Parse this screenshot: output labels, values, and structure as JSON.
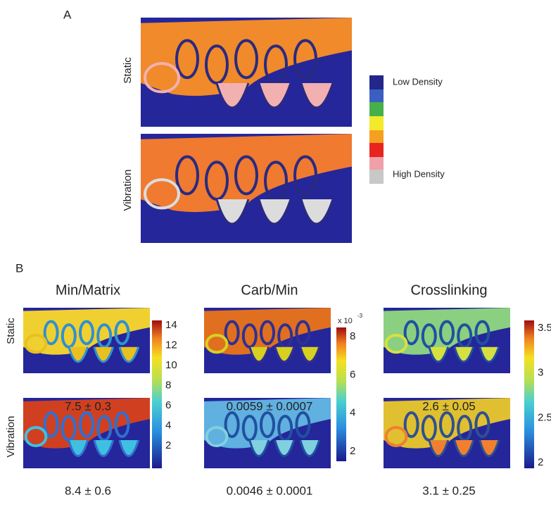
{
  "panel_a": {
    "label": "A",
    "rows": [
      "Static",
      "Vibration"
    ],
    "legend": [
      "Low Density",
      "High Density"
    ]
  },
  "panel_b": {
    "label": "B",
    "rows": [
      "Static",
      "Vibration"
    ],
    "columns": [
      {
        "title": "Min/Matrix",
        "values": [
          "7.5 ± 0.3",
          "8.4 ± 0.6"
        ],
        "colorbar": [
          14,
          12,
          10,
          8,
          6,
          4,
          2
        ]
      },
      {
        "title": "Carb/Min",
        "values": [
          "0.0059 ± 0.0007",
          "0.0046 ± 0.0001"
        ],
        "scale": {
          "base": "x 10",
          "exponent": "-3"
        },
        "colorbar": [
          8,
          6,
          4,
          2
        ]
      },
      {
        "title": "Crosslinking",
        "values": [
          "2.6 ± 0.05",
          "3.1 ± 0.25"
        ],
        "colorbar": [
          3.5,
          3,
          2.5,
          2
        ]
      }
    ]
  }
}
